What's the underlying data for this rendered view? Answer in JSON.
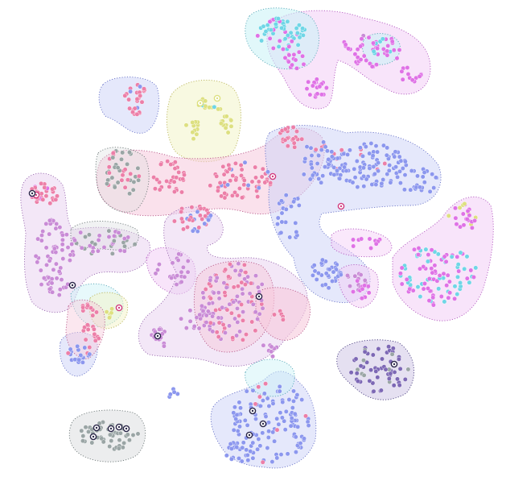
{
  "colors": {
    "pink": "#ec7fa8",
    "violet": "#c98bd6",
    "magenta": "#df72e6",
    "blue": "#8c97ee",
    "cyan": "#6fd6e6",
    "grey": "#9aa5a5",
    "yellow": "#dde080",
    "purple": "#7d68b5",
    "dark": "#2a2648",
    "highlight": "#d23c7e"
  },
  "clusters": [
    {
      "id": "top-right-pink",
      "color": "magenta",
      "hull": "pink"
    },
    {
      "id": "top-cyan",
      "color": "cyan",
      "hull": "cyan"
    },
    {
      "id": "top-left-small",
      "color": "pink",
      "hull": "blue"
    },
    {
      "id": "yellow-top",
      "color": "yellow",
      "hull": "yellow"
    },
    {
      "id": "center-pink-band",
      "color": "pink",
      "hull": "pink"
    },
    {
      "id": "right-blue-large",
      "color": "blue",
      "hull": "blue"
    },
    {
      "id": "left-violet",
      "color": "violet",
      "hull": "violet"
    },
    {
      "id": "left-grey",
      "color": "grey",
      "hull": "grey"
    },
    {
      "id": "right-magenta",
      "color": "magenta",
      "hull": "magenta"
    },
    {
      "id": "center-mauve",
      "color": "violet",
      "hull": "pink"
    },
    {
      "id": "bottom-right-purple",
      "color": "purple",
      "hull": "purple"
    },
    {
      "id": "bottom-blue",
      "color": "blue",
      "hull": "blue"
    },
    {
      "id": "bottom-left-grey",
      "color": "grey",
      "hull": "grey"
    }
  ]
}
